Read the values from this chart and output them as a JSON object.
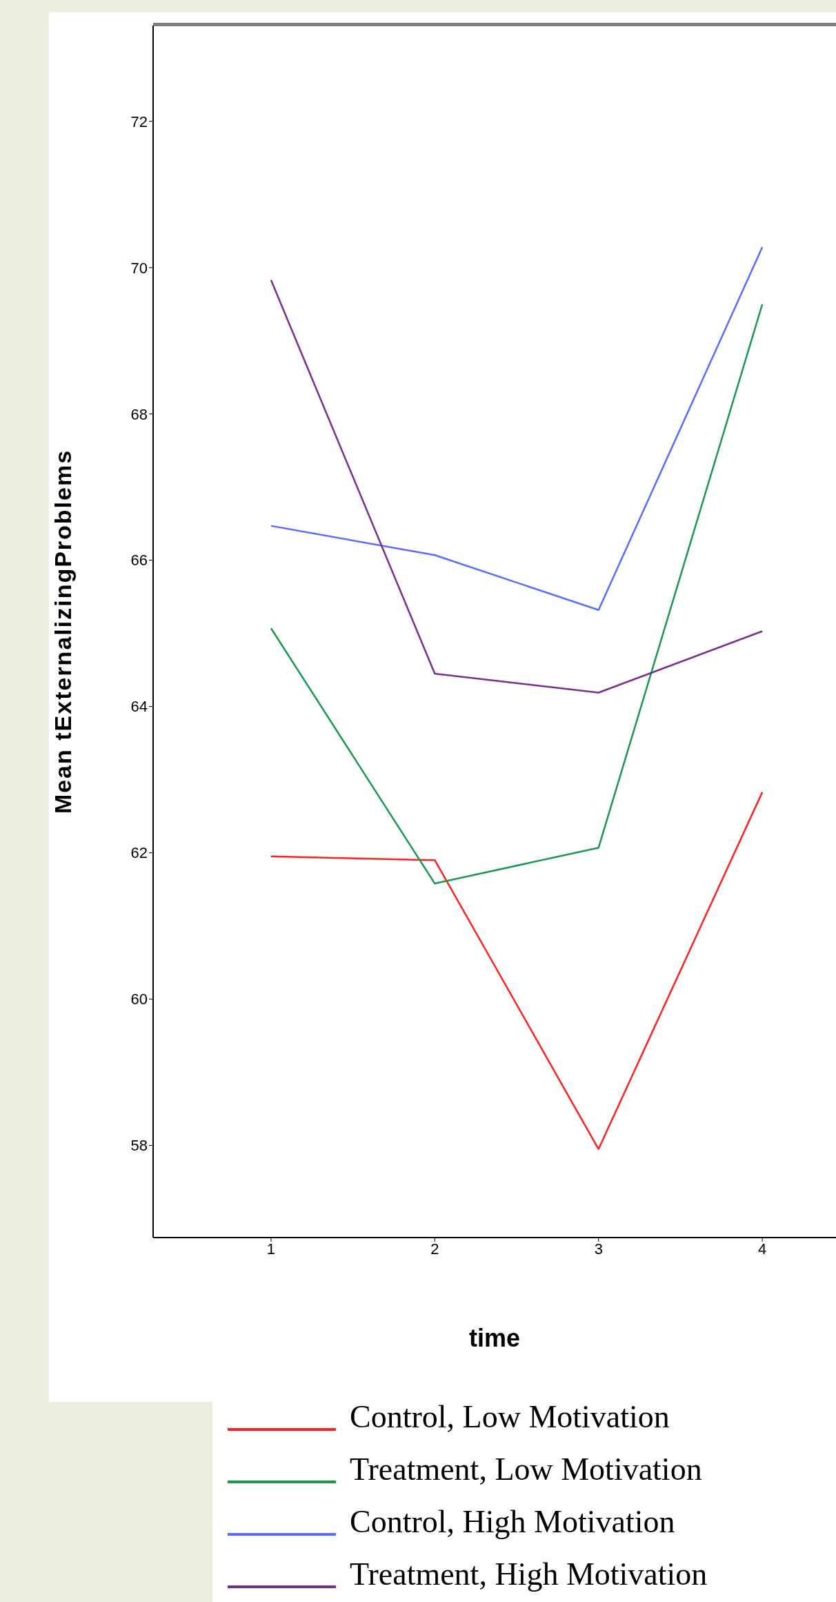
{
  "chart_data": {
    "type": "line",
    "xlabel": "time",
    "ylabel": "Mean tExternalizingProblems",
    "x": [
      1,
      2,
      3,
      4
    ],
    "xlim": [
      0.28,
      4.45
    ],
    "xticks": [
      1,
      2,
      3,
      4
    ],
    "ylim": [
      56.74,
      73.31
    ],
    "yticks": [
      58,
      60,
      62,
      64,
      66,
      68,
      70,
      72
    ],
    "legend": "bottom",
    "marker": "none",
    "line_style": "solid",
    "series": [
      {
        "name": "Control, Low Motivation",
        "color": "#ff2020",
        "values": [
          61.95,
          61.9,
          57.95,
          62.83
        ]
      },
      {
        "name": "Treatment, Low Motivation",
        "color": "#1a9850",
        "values": [
          65.07,
          61.58,
          62.07,
          69.5
        ]
      },
      {
        "name": "Control, High Motivation",
        "color": "#5a6cff",
        "values": [
          66.47,
          66.07,
          65.32,
          70.28
        ]
      },
      {
        "name": "Treatment, High Motivation",
        "color": "#7b2d8e",
        "values": [
          69.83,
          64.45,
          64.19,
          65.03
        ]
      }
    ]
  }
}
